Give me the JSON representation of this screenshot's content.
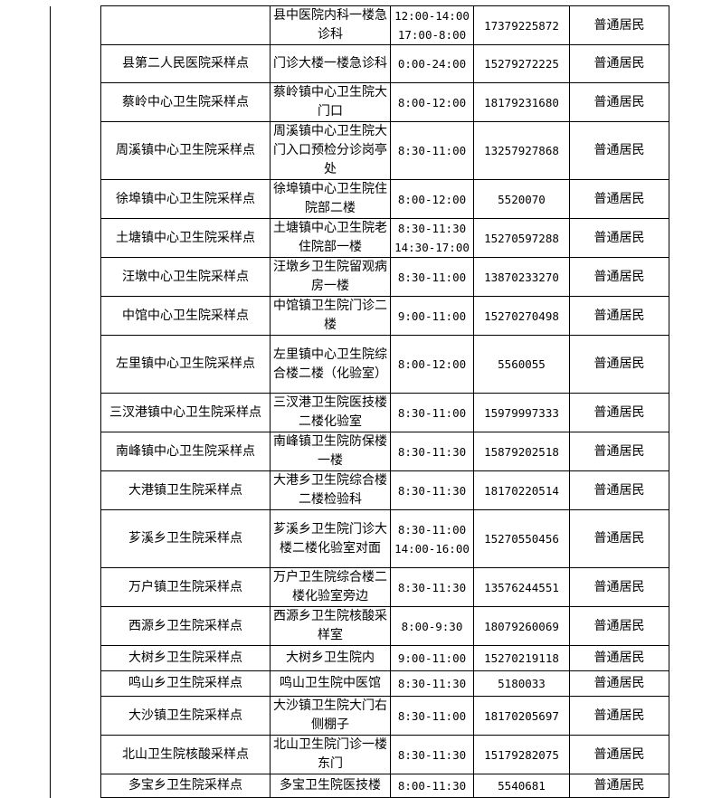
{
  "rows": [
    {
      "name": "",
      "address": "县中医院内科一楼急诊科",
      "hours": [
        "12:00-14:00",
        "17:00-8:00"
      ],
      "phone": "17379225872",
      "type": "普通居民"
    },
    {
      "name": "县第二人民医院采样点",
      "address": "门诊大楼一楼急诊科",
      "hours": [
        "0:00-24:00"
      ],
      "phone": "15279272225",
      "type": "普通居民"
    },
    {
      "name": "蔡岭中心卫生院采样点",
      "address": "蔡岭镇中心卫生院大门口",
      "hours": [
        "8:00-12:00"
      ],
      "phone": "18179231680",
      "type": "普通居民"
    },
    {
      "name": "周溪镇中心卫生院采样点",
      "address": "周溪镇中心卫生院大门入口预检分诊岗亭处",
      "hours": [
        "8:30-11:00"
      ],
      "phone": "13257927868",
      "type": "普通居民"
    },
    {
      "name": "徐埠镇中心卫生院采样点",
      "address": "徐埠镇中心卫生院住院部二楼",
      "hours": [
        "8:00-12:00"
      ],
      "phone": "5520070",
      "type": "普通居民"
    },
    {
      "name": "土塘镇中心卫生院采样点",
      "address": "土塘镇中心卫生院老住院部一楼",
      "hours": [
        "8:30-11:30",
        "14:30-17:00"
      ],
      "phone": "15270597288",
      "type": "普通居民"
    },
    {
      "name": "汪墩中心卫生院采样点",
      "address": "汪墩乡卫生院留观病房一楼",
      "hours": [
        "8:30-11:00"
      ],
      "phone": "13870233270",
      "type": "普通居民"
    },
    {
      "name": "中馆中心卫生院采样点",
      "address": "中馆镇卫生院门诊二楼",
      "hours": [
        "9:00-11:00"
      ],
      "phone": "15270270498",
      "type": "普通居民"
    },
    {
      "name": "左里镇中心卫生院采样点",
      "address": "左里镇中心卫生院综合楼二楼（化验室）",
      "hours": [
        "8:00-12:00"
      ],
      "phone": "5560055",
      "type": "普通居民"
    },
    {
      "name": "三汊港镇中心卫生院采样点",
      "address": "三汊港卫生院医技楼二楼化验室",
      "hours": [
        "8:30-11:00"
      ],
      "phone": "15979997333",
      "type": "普通居民"
    },
    {
      "name": "南峰镇中心卫生院采样点",
      "address": "南峰镇卫生院防保楼一楼",
      "hours": [
        "8:30-11:30"
      ],
      "phone": "15879202518",
      "type": "普通居民"
    },
    {
      "name": "大港镇卫生院采样点",
      "address": "大港乡卫生院综合楼二楼检验科",
      "hours": [
        "8:30-11:30"
      ],
      "phone": "18170220514",
      "type": "普通居民"
    },
    {
      "name": "芗溪乡卫生院采样点",
      "address": "芗溪乡卫生院门诊大楼二楼化验室对面",
      "hours": [
        "8:30-11:00",
        "14:00-16:00"
      ],
      "phone": "15270550456",
      "type": "普通居民"
    },
    {
      "name": "万户镇卫生院采样点",
      "address": "万户卫生院综合楼二楼化验室旁边",
      "hours": [
        "8:30-11:30"
      ],
      "phone": "13576244551",
      "type": "普通居民"
    },
    {
      "name": "西源乡卫生院采样点",
      "address": "西源乡卫生院核酸采样室",
      "hours": [
        "8:00-9:30"
      ],
      "phone": "18079260069",
      "type": "普通居民"
    },
    {
      "name": "大树乡卫生院采样点",
      "address": "大树乡卫生院内",
      "hours": [
        "9:00-11:00"
      ],
      "phone": "15270219118",
      "type": "普通居民"
    },
    {
      "name": "鸣山乡卫生院采样点",
      "address": "鸣山卫生院中医馆",
      "hours": [
        "8:30-11:30"
      ],
      "phone": "5180033",
      "type": "普通居民"
    },
    {
      "name": "大沙镇卫生院采样点",
      "address": "大沙镇卫生院大门右侧棚子",
      "hours": [
        "8:30-11:00"
      ],
      "phone": "18170205697",
      "type": "普通居民"
    },
    {
      "name": "北山卫生院核酸采样点",
      "address": "北山卫生院门诊一楼东门",
      "hours": [
        "8:30-11:30"
      ],
      "phone": "15179282075",
      "type": "普通居民"
    },
    {
      "name": "多宝乡卫生院采样点",
      "address": "多宝卫生院医技楼",
      "hours": [
        "8:00-11:30"
      ],
      "phone": "5540681",
      "type": "普通居民"
    }
  ]
}
